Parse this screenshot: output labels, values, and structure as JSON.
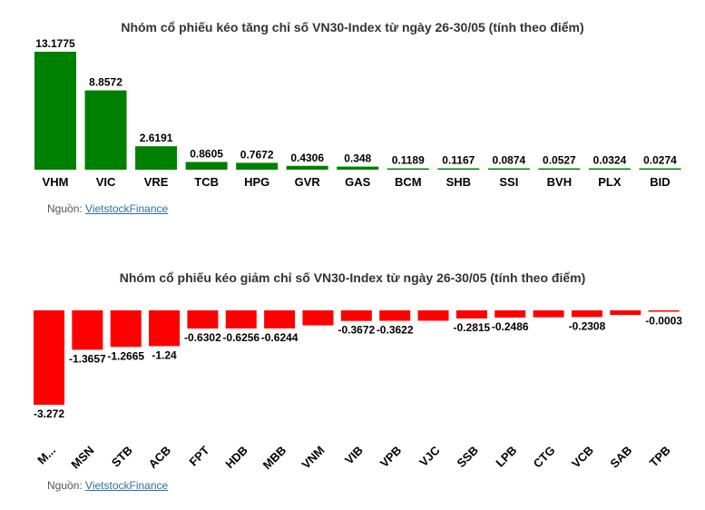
{
  "colors": {
    "positive": "#008000",
    "negative": "#ff0000"
  },
  "source_label": "Nguồn:",
  "source_link": "VietstockFinance",
  "chart_data": [
    {
      "type": "bar",
      "title": "Nhóm cổ phiếu kéo tăng chỉ số VN30-Index từ ngày 26-30/05 (tính theo điểm)",
      "categories": [
        "VHM",
        "VIC",
        "VRE",
        "TCB",
        "HPG",
        "GVR",
        "GAS",
        "BCM",
        "SHB",
        "SSI",
        "BVH",
        "PLX",
        "BID"
      ],
      "values": [
        13.1775,
        8.8572,
        2.6191,
        0.8605,
        0.7672,
        0.4306,
        0.348,
        0.1189,
        0.1167,
        0.0874,
        0.0527,
        0.0324,
        0.0274
      ],
      "value_labels": [
        "13.1775",
        "8.8572",
        "2.6191",
        "0.8605",
        "0.7672",
        "0.4306",
        "0.348",
        "0.1189",
        "0.1167",
        "0.0874",
        "0.0527",
        "0.0324",
        "0.0274"
      ],
      "xlabel": "",
      "ylabel": "",
      "grid": false,
      "legend": "none"
    },
    {
      "type": "bar",
      "title": "Nhóm cổ phiếu kéo giảm chỉ số VN30-Index từ ngày 26-30/05 (tính theo điểm)",
      "categories": [
        "M...",
        "MSN",
        "STB",
        "ACB",
        "FPT",
        "HDB",
        "MBB",
        "VNM",
        "VIB",
        "VPB",
        "VJC",
        "SSB",
        "LPB",
        "CTG",
        "VCB",
        "SAB",
        "TPB"
      ],
      "values": [
        -3.272,
        -1.3657,
        -1.2665,
        -1.24,
        -0.6302,
        -0.6256,
        -0.6244,
        -0.52,
        -0.3672,
        -0.3622,
        -0.36,
        -0.2815,
        -0.2486,
        -0.24,
        -0.2308,
        -0.16,
        -0.0003
      ],
      "value_labels": [
        "-3.272",
        "-1.3657",
        "-1.2665",
        "-1.24",
        "-0.6302",
        "-0.6256",
        "-0.6244",
        "",
        "-0.3672",
        "-0.3622",
        "",
        "-0.2815",
        "-0.2486",
        "",
        "-0.2308",
        "",
        "-0.0003"
      ],
      "xlabel": "",
      "ylabel": "",
      "grid": false,
      "legend": "none"
    }
  ]
}
